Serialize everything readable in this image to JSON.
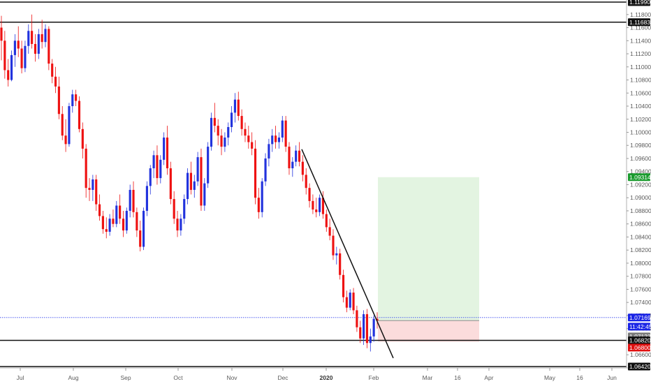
{
  "chart_data": {
    "type": "candlestick",
    "x_labels": [
      "Jul",
      "Aug",
      "Sep",
      "Oct",
      "Nov",
      "Dec",
      "2020",
      "Feb",
      "Mar",
      "16",
      "Apr",
      "May",
      "16",
      "Jun"
    ],
    "y_ticks": [
      "1.11800",
      "1.11600",
      "1.11400",
      "1.11200",
      "1.11000",
      "1.10800",
      "1.10600",
      "1.10400",
      "1.10200",
      "1.10000",
      "1.09800",
      "1.09600",
      "1.09400",
      "1.09200",
      "1.09000",
      "1.08800",
      "1.08600",
      "1.08400",
      "1.08200",
      "1.08000",
      "1.07800",
      "1.07600",
      "1.07400",
      "1.07200",
      "1.07000",
      "1.06600"
    ],
    "ylim": [
      1.0642,
      1.1199
    ],
    "horizontal_levels": [
      {
        "value": 1.1199,
        "label": "1.11990"
      },
      {
        "value": 1.11683,
        "label": "1.11683"
      },
      {
        "value": 1.0682,
        "label": "1.06820"
      },
      {
        "value": 1.0642,
        "label": "1.06420"
      }
    ],
    "price_badges": [
      {
        "label": "1.09314",
        "value": 1.09314,
        "bg": "#1a9b2e",
        "fg": "#ffffff"
      },
      {
        "label": "1.07169",
        "value": 1.07169,
        "bg": "#1a24e6",
        "fg": "#ffffff"
      },
      {
        "label": "11:42:45",
        "value": 1.0703,
        "bg": "#1a24e6",
        "fg": "#ffffff"
      },
      {
        "label": "1.07123",
        "value": 1.0688,
        "bg": "#7a7a7a",
        "fg": "#ffffff"
      },
      {
        "label": "1.06820",
        "value": 1.0682,
        "bg": "#111111",
        "fg": "#ffffff"
      },
      {
        "label": "1.06800",
        "value": 1.0671,
        "bg": "#e01010",
        "fg": "#ffffff"
      }
    ],
    "current_price": 1.07169,
    "position": {
      "entry": 1.07123,
      "target": 1.09314,
      "stop": 1.068
    },
    "trendline": [
      {
        "date": "2019-12-19",
        "price": 1.0974
      },
      {
        "date": "2020-02-10",
        "price": 1.0655
      }
    ],
    "colors": {
      "up": "#2233dd",
      "down": "#ee1111",
      "profit_zone": "#e3f4e1",
      "loss_zone": "#fbdcdc",
      "line": "#111111"
    },
    "series": [
      {
        "open": 1.116,
        "high": 1.1178,
        "low": 1.111,
        "close": 1.114
      },
      {
        "open": 1.114,
        "high": 1.1155,
        "low": 1.1082,
        "close": 1.1095
      },
      {
        "open": 1.1095,
        "high": 1.1112,
        "low": 1.107,
        "close": 1.108
      },
      {
        "open": 1.108,
        "high": 1.1125,
        "low": 1.1078,
        "close": 1.1118
      },
      {
        "open": 1.1118,
        "high": 1.115,
        "low": 1.11,
        "close": 1.114
      },
      {
        "open": 1.114,
        "high": 1.1162,
        "low": 1.1115,
        "close": 1.1128
      },
      {
        "open": 1.1128,
        "high": 1.114,
        "low": 1.109,
        "close": 1.1098
      },
      {
        "open": 1.1098,
        "high": 1.114,
        "low": 1.1092,
        "close": 1.1132
      },
      {
        "open": 1.1132,
        "high": 1.1165,
        "low": 1.112,
        "close": 1.1155
      },
      {
        "open": 1.1155,
        "high": 1.118,
        "low": 1.1128,
        "close": 1.1135
      },
      {
        "open": 1.1135,
        "high": 1.115,
        "low": 1.1108,
        "close": 1.112
      },
      {
        "open": 1.112,
        "high": 1.1158,
        "low": 1.1112,
        "close": 1.115
      },
      {
        "open": 1.115,
        "high": 1.1172,
        "low": 1.1128,
        "close": 1.1138
      },
      {
        "open": 1.1138,
        "high": 1.1165,
        "low": 1.113,
        "close": 1.1158
      },
      {
        "open": 1.1158,
        "high": 1.1162,
        "low": 1.1095,
        "close": 1.1105
      },
      {
        "open": 1.1105,
        "high": 1.1112,
        "low": 1.1075,
        "close": 1.1085
      },
      {
        "open": 1.1085,
        "high": 1.11,
        "low": 1.106,
        "close": 1.107
      },
      {
        "open": 1.107,
        "high": 1.1085,
        "low": 1.102,
        "close": 1.1028
      },
      {
        "open": 1.1028,
        "high": 1.104,
        "low": 1.0988,
        "close": 1.0995
      },
      {
        "open": 1.0995,
        "high": 1.102,
        "low": 1.097,
        "close": 1.0982
      },
      {
        "open": 1.0982,
        "high": 1.1045,
        "low": 1.0978,
        "close": 1.104
      },
      {
        "open": 1.104,
        "high": 1.1065,
        "low": 1.103,
        "close": 1.1058
      },
      {
        "open": 1.1058,
        "high": 1.1065,
        "low": 1.104,
        "close": 1.1048
      },
      {
        "open": 1.1048,
        "high": 1.1055,
        "low": 1.1,
        "close": 1.1005
      },
      {
        "open": 1.1005,
        "high": 1.1015,
        "low": 1.096,
        "close": 1.0975
      },
      {
        "open": 1.0975,
        "high": 1.0982,
        "low": 1.09,
        "close": 1.0915
      },
      {
        "open": 1.0915,
        "high": 1.093,
        "low": 1.0895,
        "close": 1.0912
      },
      {
        "open": 1.0912,
        "high": 1.0935,
        "low": 1.0895,
        "close": 1.0928
      },
      {
        "open": 1.0928,
        "high": 1.0935,
        "low": 1.088,
        "close": 1.089
      },
      {
        "open": 1.089,
        "high": 1.0905,
        "low": 1.0865,
        "close": 1.0872
      },
      {
        "open": 1.0872,
        "high": 1.088,
        "low": 1.0845,
        "close": 1.0852
      },
      {
        "open": 1.0852,
        "high": 1.087,
        "low": 1.0838,
        "close": 1.0848
      },
      {
        "open": 1.0848,
        "high": 1.0875,
        "low": 1.0842,
        "close": 1.0868
      },
      {
        "open": 1.0868,
        "high": 1.0882,
        "low": 1.0855,
        "close": 1.086
      },
      {
        "open": 1.086,
        "high": 1.0895,
        "low": 1.0855,
        "close": 1.0888
      },
      {
        "open": 1.0888,
        "high": 1.0905,
        "low": 1.086,
        "close": 1.0868
      },
      {
        "open": 1.0868,
        "high": 1.088,
        "low": 1.084,
        "close": 1.085
      },
      {
        "open": 1.085,
        "high": 1.0885,
        "low": 1.0845,
        "close": 1.088
      },
      {
        "open": 1.088,
        "high": 1.092,
        "low": 1.087,
        "close": 1.0912
      },
      {
        "open": 1.0912,
        "high": 1.0925,
        "low": 1.087,
        "close": 1.0878
      },
      {
        "open": 1.0878,
        "high": 1.0885,
        "low": 1.084,
        "close": 1.085
      },
      {
        "open": 1.085,
        "high": 1.0865,
        "low": 1.0818,
        "close": 1.0825
      },
      {
        "open": 1.0825,
        "high": 1.0885,
        "low": 1.082,
        "close": 1.088
      },
      {
        "open": 1.088,
        "high": 1.0925,
        "low": 1.0872,
        "close": 1.0918
      },
      {
        "open": 1.0918,
        "high": 1.095,
        "low": 1.0905,
        "close": 1.0945
      },
      {
        "open": 1.0945,
        "high": 1.0972,
        "low": 1.093,
        "close": 1.0965
      },
      {
        "open": 1.0965,
        "high": 1.098,
        "low": 1.092,
        "close": 1.093
      },
      {
        "open": 1.093,
        "high": 1.0965,
        "low": 1.0922,
        "close": 1.0958
      },
      {
        "open": 1.0958,
        "high": 1.1,
        "low": 1.095,
        "close": 1.0992
      },
      {
        "open": 1.0992,
        "high": 1.101,
        "low": 1.0935,
        "close": 1.0945
      },
      {
        "open": 1.0945,
        "high": 1.0955,
        "low": 1.089,
        "close": 1.0898
      },
      {
        "open": 1.0898,
        "high": 1.091,
        "low": 1.086,
        "close": 1.0868
      },
      {
        "open": 1.0868,
        "high": 1.088,
        "low": 1.084,
        "close": 1.085
      },
      {
        "open": 1.085,
        "high": 1.0875,
        "low": 1.0842,
        "close": 1.0868
      },
      {
        "open": 1.0868,
        "high": 1.0905,
        "low": 1.086,
        "close": 1.0898
      },
      {
        "open": 1.0898,
        "high": 1.0945,
        "low": 1.089,
        "close": 1.0938
      },
      {
        "open": 1.0938,
        "high": 1.0955,
        "low": 1.0905,
        "close": 1.0912
      },
      {
        "open": 1.0912,
        "high": 1.0935,
        "low": 1.09,
        "close": 1.0925
      },
      {
        "open": 1.0925,
        "high": 1.097,
        "low": 1.0918,
        "close": 1.0962
      },
      {
        "open": 1.0962,
        "high": 1.0975,
        "low": 1.088,
        "close": 1.0888
      },
      {
        "open": 1.0888,
        "high": 1.093,
        "low": 1.088,
        "close": 1.0922
      },
      {
        "open": 1.0922,
        "high": 1.0985,
        "low": 1.0915,
        "close": 1.0978
      },
      {
        "open": 1.0978,
        "high": 1.103,
        "low": 1.0972,
        "close": 1.1022
      },
      {
        "open": 1.1022,
        "high": 1.1045,
        "low": 1.1,
        "close": 1.101
      },
      {
        "open": 1.101,
        "high": 1.102,
        "low": 1.098,
        "close": 1.0995
      },
      {
        "open": 1.0995,
        "high": 1.1005,
        "low": 1.0965,
        "close": 1.0978
      },
      {
        "open": 1.0978,
        "high": 1.1,
        "low": 1.097,
        "close": 1.0992
      },
      {
        "open": 1.0992,
        "high": 1.1015,
        "low": 1.098,
        "close": 1.1008
      },
      {
        "open": 1.1008,
        "high": 1.104,
        "low": 1.1,
        "close": 1.103
      },
      {
        "open": 1.103,
        "high": 1.106,
        "low": 1.1015,
        "close": 1.105
      },
      {
        "open": 1.105,
        "high": 1.1062,
        "low": 1.1018,
        "close": 1.1025
      },
      {
        "open": 1.1025,
        "high": 1.1035,
        "low": 1.0995,
        "close": 1.1005
      },
      {
        "open": 1.1005,
        "high": 1.1015,
        "low": 1.0985,
        "close": 1.0995
      },
      {
        "open": 1.0995,
        "high": 1.101,
        "low": 1.0975,
        "close": 1.0985
      },
      {
        "open": 1.0985,
        "high": 1.1,
        "low": 1.0965,
        "close": 1.0975
      },
      {
        "open": 1.0975,
        "high": 1.0988,
        "low": 1.089,
        "close": 1.09
      },
      {
        "open": 1.09,
        "high": 1.0915,
        "low": 1.0868,
        "close": 1.0878
      },
      {
        "open": 1.0878,
        "high": 1.093,
        "low": 1.087,
        "close": 1.0925
      },
      {
        "open": 1.0925,
        "high": 1.0968,
        "low": 1.0918,
        "close": 1.096
      },
      {
        "open": 1.096,
        "high": 1.099,
        "low": 1.0948,
        "close": 1.0982
      },
      {
        "open": 1.0982,
        "high": 1.1005,
        "low": 1.097,
        "close": 1.0995
      },
      {
        "open": 1.0995,
        "high": 1.101,
        "low": 1.0975,
        "close": 1.0985
      },
      {
        "open": 1.0985,
        "high": 1.1,
        "low": 1.0975,
        "close": 1.0992
      },
      {
        "open": 1.0992,
        "high": 1.1025,
        "low": 1.0985,
        "close": 1.1018
      },
      {
        "open": 1.1018,
        "high": 1.1025,
        "low": 1.097,
        "close": 1.0978
      },
      {
        "open": 1.0978,
        "high": 1.0985,
        "low": 1.0935,
        "close": 1.0945
      },
      {
        "open": 1.0945,
        "high": 1.0962,
        "low": 1.0932,
        "close": 1.0955
      },
      {
        "open": 1.0955,
        "high": 1.098,
        "low": 1.0948,
        "close": 1.0972
      },
      {
        "open": 1.0972,
        "high": 1.0985,
        "low": 1.0948,
        "close": 1.0955
      },
      {
        "open": 1.0955,
        "high": 1.0965,
        "low": 1.0925,
        "close": 1.0935
      },
      {
        "open": 1.0935,
        "high": 1.0945,
        "low": 1.0905,
        "close": 1.0915
      },
      {
        "open": 1.0915,
        "high": 1.0922,
        "low": 1.0885,
        "close": 1.0895
      },
      {
        "open": 1.0895,
        "high": 1.0905,
        "low": 1.0875,
        "close": 1.0882
      },
      {
        "open": 1.0882,
        "high": 1.09,
        "low": 1.087,
        "close": 1.0878
      },
      {
        "open": 1.0878,
        "high": 1.0905,
        "low": 1.0872,
        "close": 1.09
      },
      {
        "open": 1.09,
        "high": 1.091,
        "low": 1.0868,
        "close": 1.0875
      },
      {
        "open": 1.0875,
        "high": 1.0882,
        "low": 1.0848,
        "close": 1.0855
      },
      {
        "open": 1.0855,
        "high": 1.0868,
        "low": 1.0835,
        "close": 1.0842
      },
      {
        "open": 1.0842,
        "high": 1.0852,
        "low": 1.0805,
        "close": 1.0812
      },
      {
        "open": 1.0812,
        "high": 1.0825,
        "low": 1.0798,
        "close": 1.0815
      },
      {
        "open": 1.0815,
        "high": 1.0822,
        "low": 1.0775,
        "close": 1.0782
      },
      {
        "open": 1.0782,
        "high": 1.079,
        "low": 1.074,
        "close": 1.0748
      },
      {
        "open": 1.0748,
        "high": 1.0758,
        "low": 1.0725,
        "close": 1.0732
      },
      {
        "open": 1.0732,
        "high": 1.076,
        "low": 1.0728,
        "close": 1.0755
      },
      {
        "open": 1.0755,
        "high": 1.0762,
        "low": 1.0722,
        "close": 1.0728
      },
      {
        "open": 1.0728,
        "high": 1.0735,
        "low": 1.0695,
        "close": 1.0702
      },
      {
        "open": 1.0702,
        "high": 1.0712,
        "low": 1.0678,
        "close": 1.0685
      },
      {
        "open": 1.0685,
        "high": 1.0728,
        "low": 1.0675,
        "close": 1.0722
      },
      {
        "open": 1.0722,
        "high": 1.073,
        "low": 1.067,
        "close": 1.0678
      },
      {
        "open": 1.0678,
        "high": 1.07,
        "low": 1.0665,
        "close": 1.0688
      },
      {
        "open": 1.0688,
        "high": 1.072,
        "low": 1.068,
        "close": 1.0715
      },
      {
        "open": 1.0715,
        "high": 1.0725,
        "low": 1.07,
        "close": 1.0712
      }
    ]
  }
}
